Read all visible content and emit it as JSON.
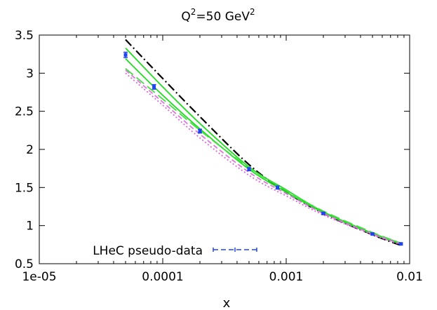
{
  "chart_data": {
    "type": "line",
    "title_main": "Q",
    "title_sup1": "2",
    "title_mid": "=50 GeV",
    "title_sup2": "2",
    "xlabel": "x",
    "ylabel": "",
    "xscale": "log",
    "xlim": [
      1e-05,
      0.01
    ],
    "ylim": [
      0.5,
      3.5
    ],
    "xticks": [
      {
        "value": 1e-05,
        "label": "1e-05"
      },
      {
        "value": 0.0001,
        "label": "0.0001"
      },
      {
        "value": 0.001,
        "label": "0.001"
      },
      {
        "value": 0.01,
        "label": "0.01"
      }
    ],
    "yticks": [
      {
        "value": 0.5,
        "label": "0.5"
      },
      {
        "value": 1,
        "label": "1"
      },
      {
        "value": 1.5,
        "label": "1.5"
      },
      {
        "value": 2,
        "label": "2"
      },
      {
        "value": 2.5,
        "label": "2.5"
      },
      {
        "value": 3,
        "label": "3"
      },
      {
        "value": 3.5,
        "label": "3.5"
      }
    ],
    "grid": false,
    "legend_position": "bottom-left",
    "series": [
      {
        "style": "dash-dot",
        "color": "#000000",
        "x": [
          5e-05,
          0.0001,
          0.0002,
          0.0005,
          0.001,
          0.002,
          0.005,
          0.0085
        ],
        "y": [
          3.44,
          2.93,
          2.43,
          1.8,
          1.44,
          1.16,
          0.88,
          0.74
        ]
      },
      {
        "style": "solid",
        "color": "#22dd22",
        "x": [
          5e-05,
          0.0001,
          0.0002,
          0.0005,
          0.001,
          0.002,
          0.005,
          0.0085
        ],
        "y": [
          3.33,
          2.82,
          2.34,
          1.77,
          1.47,
          1.18,
          0.9,
          0.77
        ]
      },
      {
        "style": "solid",
        "color": "#22dd22",
        "x": [
          5e-05,
          0.0001,
          0.0002,
          0.0005,
          0.001,
          0.002,
          0.005,
          0.0085
        ],
        "y": [
          3.19,
          2.71,
          2.27,
          1.74,
          1.44,
          1.17,
          0.89,
          0.76
        ]
      },
      {
        "style": "long-dash",
        "color": "#44dd44",
        "x": [
          5e-05,
          0.0001,
          0.0002,
          0.0005,
          0.001,
          0.002,
          0.005,
          0.0085
        ],
        "y": [
          3.06,
          2.66,
          2.25,
          1.76,
          1.46,
          1.19,
          0.91,
          0.77
        ]
      },
      {
        "style": "dashed",
        "color": "#dd77dd",
        "x": [
          5e-05,
          0.0001,
          0.0002,
          0.0005,
          0.001,
          0.002,
          0.005,
          0.0085
        ],
        "y": [
          3.04,
          2.62,
          2.2,
          1.7,
          1.42,
          1.16,
          0.89,
          0.76
        ]
      },
      {
        "style": "dotted",
        "color": "#dd66dd",
        "x": [
          5e-05,
          0.0001,
          0.0002,
          0.0005,
          0.001,
          0.002,
          0.005,
          0.0085
        ],
        "y": [
          3.0,
          2.58,
          2.15,
          1.66,
          1.39,
          1.14,
          0.88,
          0.75
        ]
      }
    ],
    "points": {
      "name": "LHeC pseudo-data",
      "color": "#2244ee",
      "x": [
        5e-05,
        8.5e-05,
        0.0002,
        0.0005,
        0.00085,
        0.002,
        0.005,
        0.0085
      ],
      "y": [
        3.24,
        2.82,
        2.24,
        1.74,
        1.5,
        1.16,
        0.89,
        0.76
      ],
      "err": [
        0.035,
        0.03,
        0.025,
        0.02,
        0.02,
        0.015,
        0.012,
        0.012
      ]
    }
  }
}
